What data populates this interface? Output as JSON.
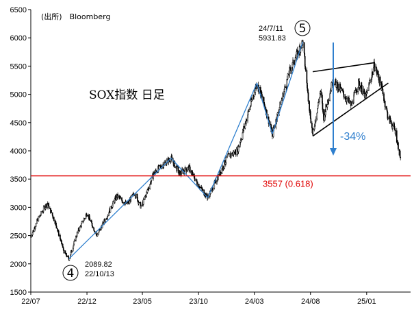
{
  "source": "(出所)　Bloomberg",
  "chart_data": {
    "type": "candlestick",
    "title": "SOX指数 日足",
    "ylim": [
      1500,
      6500
    ],
    "yticks": [
      "6500",
      "6000",
      "5500",
      "5000",
      "4500",
      "4000",
      "3500",
      "3000",
      "2500",
      "2000",
      "1500"
    ],
    "xticks": [
      "22/07",
      "22/12",
      "23/05",
      "23/10",
      "24/03",
      "24/08",
      "25/01"
    ],
    "grid": false,
    "price_path": [
      [
        "2022-07-01",
        2480
      ],
      [
        "2022-07-20",
        2780
      ],
      [
        "2022-08-15",
        3080
      ],
      [
        "2022-09-05",
        2750
      ],
      [
        "2022-09-30",
        2200
      ],
      [
        "2022-10-13",
        2090
      ],
      [
        "2022-11-05",
        2550
      ],
      [
        "2022-12-01",
        2900
      ],
      [
        "2022-12-28",
        2500
      ],
      [
        "2023-01-25",
        2850
      ],
      [
        "2023-02-20",
        3200
      ],
      [
        "2023-03-20",
        3050
      ],
      [
        "2023-04-10",
        3250
      ],
      [
        "2023-04-28",
        3000
      ],
      [
        "2023-05-15",
        3300
      ],
      [
        "2023-06-01",
        3600
      ],
      [
        "2023-06-25",
        3750
      ],
      [
        "2023-07-18",
        3870
      ],
      [
        "2023-08-10",
        3600
      ],
      [
        "2023-09-05",
        3700
      ],
      [
        "2023-09-30",
        3400
      ],
      [
        "2023-10-26",
        3170
      ],
      [
        "2023-11-20",
        3500
      ],
      [
        "2023-12-20",
        3900
      ],
      [
        "2024-01-15",
        4000
      ],
      [
        "2024-02-10",
        4600
      ],
      [
        "2024-03-08",
        5200
      ],
      [
        "2024-03-25",
        4900
      ],
      [
        "2024-04-19",
        4300
      ],
      [
        "2024-05-10",
        4800
      ],
      [
        "2024-06-05",
        5400
      ],
      [
        "2024-07-11",
        5932
      ],
      [
        "2024-07-25",
        5000
      ],
      [
        "2024-08-07",
        4280
      ],
      [
        "2024-08-28",
        5050
      ],
      [
        "2024-09-06",
        4600
      ],
      [
        "2024-10-01",
        5250
      ],
      [
        "2024-10-25",
        5050
      ],
      [
        "2024-11-20",
        4800
      ],
      [
        "2024-12-10",
        5200
      ],
      [
        "2024-12-30",
        4950
      ],
      [
        "2025-01-22",
        5520
      ],
      [
        "2025-02-10",
        5150
      ],
      [
        "2025-02-28",
        4600
      ],
      [
        "2025-03-20",
        4350
      ],
      [
        "2025-04-03",
        3880
      ]
    ],
    "wave_lines": [
      [
        [
          "2022-10-13",
          2090
        ],
        [
          "2023-07-18",
          3870
        ]
      ],
      [
        [
          "2023-07-18",
          3870
        ],
        [
          "2023-10-26",
          3170
        ]
      ],
      [
        [
          "2023-10-26",
          3170
        ],
        [
          "2024-03-08",
          5200
        ]
      ],
      [
        [
          "2024-03-08",
          5200
        ],
        [
          "2024-04-19",
          4300
        ]
      ],
      [
        [
          "2024-04-19",
          4300
        ],
        [
          "2024-07-11",
          5932
        ]
      ]
    ],
    "triangle_lines": [
      [
        [
          "2024-08-07",
          5400
        ],
        [
          "2025-01-22",
          5560
        ]
      ],
      [
        [
          "2024-08-07",
          4260
        ],
        [
          "2025-03-01",
          5200
        ]
      ]
    ],
    "reference_line": {
      "value": 3557,
      "label": "3557 (0.618)",
      "color": "#e00000"
    },
    "annotations": {
      "peak_date": "24/7/11",
      "peak_value": "5931.83",
      "peak_wave": "5",
      "low_value": "2089.82",
      "low_date": "22/10/13",
      "low_wave": "4",
      "decline_pct": "-34%"
    },
    "colors": {
      "candle": "#000000",
      "wave": "#2f7fce",
      "reference": "#e00000",
      "triangle": "#000000"
    }
  }
}
